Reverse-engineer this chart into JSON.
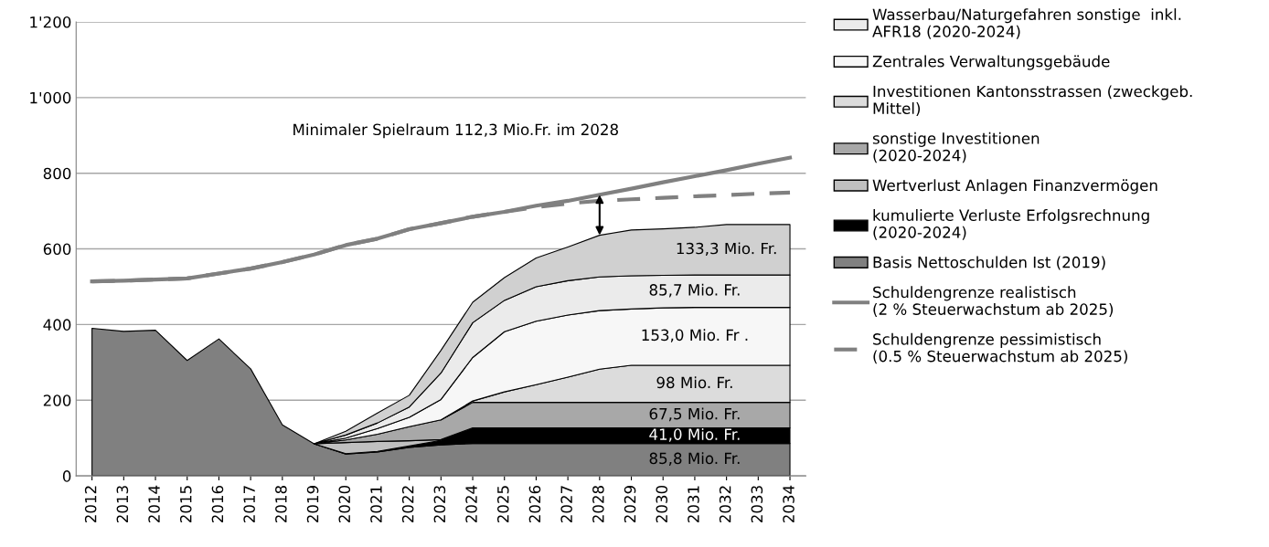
{
  "chart_data": {
    "type": "area",
    "stacked": true,
    "categories": [
      "2012",
      "2013",
      "2014",
      "2015",
      "2016",
      "2017",
      "2018",
      "2019",
      "2020",
      "2021",
      "2022",
      "2023",
      "2024",
      "2025",
      "2026",
      "2027",
      "2028",
      "2029",
      "2030",
      "2031",
      "2032",
      "2033",
      "2034"
    ],
    "ylim": [
      0,
      1200
    ],
    "yticks": [
      0,
      200,
      400,
      600,
      800,
      {
        "value": 1000,
        "label": "1'000"
      },
      {
        "value": 1200,
        "label": "1'200"
      }
    ],
    "grid": "y",
    "legend": "right",
    "series": [
      {
        "name": "Basis Nettoschulden Ist (2019)",
        "color": "#808080",
        "values": [
          390,
          382,
          385,
          305,
          362,
          283,
          135,
          85,
          58,
          63,
          75,
          82,
          85.8,
          85.8,
          85.8,
          85.8,
          85.8,
          85.8,
          85.8,
          85.8,
          85.8,
          85.8,
          85.8
        ],
        "value_labels": [
          null,
          null,
          null,
          null,
          null,
          null,
          null,
          null,
          null,
          null,
          null,
          null,
          null,
          null,
          null,
          null,
          null,
          null,
          null,
          "85,8 Mio. Fr.",
          null,
          null,
          null
        ]
      },
      {
        "name": "kumulierte Verluste Erfolgsrechnung\n(2020-2024)",
        "color": "#000000",
        "values": [
          null,
          null,
          null,
          null,
          null,
          null,
          null,
          0,
          1,
          2,
          4,
          12,
          41.0,
          41.0,
          41.0,
          41.0,
          41.0,
          41.0,
          41.0,
          41.0,
          41.0,
          41.0,
          41.0
        ],
        "value_labels": [
          null,
          null,
          null,
          null,
          null,
          null,
          null,
          null,
          null,
          null,
          null,
          null,
          null,
          null,
          null,
          null,
          null,
          null,
          null,
          "41,0 Mio. Fr.",
          null,
          null,
          null
        ]
      },
      {
        "name": "Wertverlust Anlagen Finanzvermögen",
        "color": "#c0c0c0",
        "values": [
          null,
          null,
          null,
          null,
          null,
          null,
          null,
          0,
          29,
          26,
          14,
          2,
          0,
          null,
          null,
          null,
          null,
          null,
          null,
          null,
          null,
          null,
          null
        ]
      },
      {
        "name": "sonstige Investitionen\n(2020-2024)",
        "color": "#a8a8a8",
        "values": [
          null,
          null,
          null,
          null,
          null,
          null,
          null,
          0,
          7,
          19,
          37,
          52,
          67.5,
          67.5,
          67.5,
          67.5,
          67.5,
          67.5,
          67.5,
          67.5,
          67.5,
          67.5,
          67.5
        ],
        "value_labels": [
          null,
          null,
          null,
          null,
          null,
          null,
          null,
          null,
          null,
          null,
          null,
          null,
          null,
          null,
          null,
          null,
          null,
          null,
          null,
          "67,5 Mio. Fr.",
          null,
          null,
          null
        ]
      },
      {
        "name": "Investitionen Kantonsstrassen (zweckgeb.\nMittel)",
        "color": "#dcdcdc",
        "values": [
          null,
          null,
          null,
          null,
          null,
          null,
          null,
          null,
          null,
          null,
          null,
          0,
          3.7,
          27.7,
          46.7,
          66.7,
          87.7,
          98,
          98,
          98,
          98,
          98,
          98
        ],
        "value_labels": [
          null,
          null,
          null,
          null,
          null,
          null,
          null,
          null,
          null,
          null,
          null,
          null,
          null,
          null,
          null,
          null,
          null,
          null,
          null,
          "98 Mio. Fr.",
          null,
          null,
          null
        ]
      },
      {
        "name": "Zentrales Verwaltungsgebäude",
        "color": "#f7f7f7",
        "values": [
          null,
          null,
          null,
          null,
          null,
          null,
          null,
          0,
          5,
          15,
          25,
          54,
          115,
          159,
          168,
          164,
          155,
          148.7,
          151.7,
          153.0,
          153.0,
          153.0,
          153.0
        ],
        "value_labels": [
          null,
          null,
          null,
          null,
          null,
          null,
          null,
          null,
          null,
          null,
          null,
          null,
          null,
          null,
          null,
          null,
          null,
          null,
          null,
          "153,0 Mio. Fr .",
          null,
          null,
          null
        ]
      },
      {
        "name": "Wasserbau/Naturgefahren sonstige  inkl.\nAFR18 (2020-2024)",
        "color": "#ebebeb",
        "values": [
          null,
          null,
          null,
          null,
          null,
          null,
          null,
          0,
          8,
          15,
          27,
          70,
          92,
          83,
          91,
          91,
          89,
          88,
          86,
          85.7,
          85.7,
          85.7,
          85.7
        ],
        "value_labels": [
          null,
          null,
          null,
          null,
          null,
          null,
          null,
          null,
          null,
          null,
          null,
          null,
          null,
          null,
          null,
          null,
          null,
          null,
          null,
          "85,7 Mio. Fr.",
          null,
          null,
          null
        ]
      },
      {
        "color": "#d0d0d0",
        "values": [
          null,
          null,
          null,
          null,
          null,
          null,
          null,
          0,
          10,
          26,
          31,
          60,
          54,
          60,
          76,
          89,
          110,
          121,
          123,
          126,
          133.3,
          133.3,
          133.3
        ],
        "value_labels": [
          null,
          null,
          null,
          null,
          null,
          null,
          null,
          null,
          null,
          null,
          null,
          null,
          null,
          null,
          null,
          null,
          null,
          null,
          null,
          null,
          "133,3 Mio. Fr.",
          null,
          null
        ]
      },
      {
        "name": "Schuldengrenze realistisch\n(2 % Steuerwachstum ab 2025)",
        "type": "line",
        "line_style": "solid",
        "color": "#808080",
        "values": [
          514,
          516,
          519,
          522,
          535,
          548,
          565,
          585,
          610,
          627,
          652,
          668,
          685,
          698,
          714,
          727,
          743,
          759,
          776,
          792,
          808,
          825,
          841
        ]
      },
      {
        "name": "Schuldengrenze pessimistisch\n(0.5 % Steuerwachstum ab 2025)",
        "type": "line",
        "line_style": "dashed",
        "color": "#808080",
        "values": [
          514,
          516,
          519,
          522,
          535,
          548,
          565,
          585,
          610,
          627,
          652,
          668,
          685,
          698,
          710,
          720,
          727,
          731,
          735,
          739,
          742,
          746,
          749
        ]
      }
    ],
    "annotations": [
      "Minimaler Spielraum 112,3 Mio.Fr. im 2028"
    ]
  }
}
